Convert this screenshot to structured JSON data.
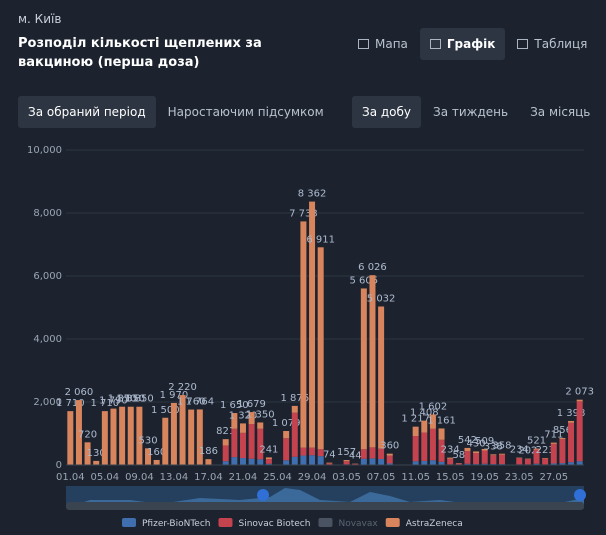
{
  "header": {
    "city": "м. Київ",
    "title": "Розподіл кількості щеплених за вакциною (перша доза)",
    "tabs": [
      "Мапа",
      "Графік",
      "Таблиця"
    ],
    "active_tab": 1
  },
  "modes": {
    "left": [
      "За обраний період",
      "Наростаючим підсумком"
    ],
    "right": [
      "За добу",
      "За тиждень",
      "За місяць"
    ],
    "left_active": 0,
    "right_active": 0
  },
  "chart_data": {
    "type": "stacked_bar",
    "categories": [
      "01.04",
      null,
      null,
      null,
      "05.04",
      null,
      null,
      null,
      "09.04",
      null,
      null,
      null,
      "13.04",
      null,
      null,
      null,
      "17.04",
      null,
      null,
      null,
      "21.04",
      null,
      null,
      null,
      "25.04",
      null,
      null,
      null,
      "29.04",
      null,
      null,
      null,
      "03.05",
      null,
      null,
      null,
      "07.05",
      null,
      null,
      null,
      "11.05",
      null,
      null,
      null,
      "15.05",
      null,
      null,
      null,
      "19.05",
      null,
      null,
      null,
      "23.05",
      null,
      null,
      null,
      "27.05",
      null,
      null,
      null
    ],
    "series": [
      {
        "name": "Pfizer-BioNTech",
        "color": "#3f6fae",
        "values": [
          0,
          0,
          0,
          0,
          0,
          0,
          0,
          0,
          0,
          0,
          0,
          0,
          0,
          0,
          0,
          0,
          0,
          0,
          120,
          250,
          220,
          200,
          180,
          40,
          0,
          150,
          260,
          300,
          310,
          280,
          10,
          0,
          20,
          5,
          200,
          210,
          190,
          50,
          0,
          0,
          120,
          130,
          150,
          100,
          20,
          8,
          40,
          30,
          40,
          30,
          30,
          0,
          20,
          20,
          40,
          20,
          50,
          60,
          90,
          120
        ]
      },
      {
        "name": "Sinovac Biotech",
        "color": "#c5434f",
        "values": [
          0,
          0,
          0,
          0,
          0,
          0,
          0,
          0,
          0,
          0,
          0,
          0,
          0,
          0,
          0,
          0,
          0,
          0,
          501,
          900,
          800,
          1100,
          970,
          150,
          0,
          700,
          1400,
          250,
          240,
          220,
          44,
          0,
          100,
          30,
          300,
          350,
          330,
          250,
          0,
          0,
          800,
          900,
          1000,
          700,
          180,
          40,
          400,
          350,
          420,
          280,
          300,
          0,
          200,
          170,
          450,
          190,
          620,
          760,
          1250,
          1900
        ]
      },
      {
        "name": "Novavax",
        "color": "#4a5361",
        "values": [
          0,
          0,
          0,
          0,
          0,
          0,
          0,
          0,
          0,
          0,
          0,
          0,
          0,
          0,
          0,
          0,
          0,
          0,
          0,
          0,
          0,
          0,
          0,
          0,
          0,
          0,
          0,
          0,
          0,
          0,
          0,
          0,
          0,
          0,
          0,
          0,
          0,
          0,
          0,
          0,
          0,
          0,
          0,
          0,
          0,
          0,
          0,
          0,
          0,
          0,
          0,
          0,
          0,
          0,
          0,
          0,
          0,
          0,
          0,
          0
        ]
      },
      {
        "name": "AstraZeneca",
        "color": "#d8845c",
        "values": [
          1710,
          2060,
          720,
          130,
          1710,
          1790,
          1850,
          1850,
          1850,
          530,
          160,
          1500,
          1970,
          2220,
          1760,
          1764,
          186,
          0,
          200,
          500,
          300,
          379,
          200,
          51,
          0,
          229,
          216,
          7183,
          7812,
          6411,
          20,
          0,
          37,
          9,
          5105,
          5466,
          4512,
          60,
          0,
          0,
          297,
          378,
          452,
          361,
          34,
          10,
          102,
          50,
          49,
          28,
          28,
          0,
          14,
          12,
          31,
          13,
          41,
          36,
          58,
          53
        ]
      }
    ],
    "total_labels": [
      "1 710",
      "2 060",
      "720",
      "130",
      "1 710",
      "1 790",
      "1 850",
      "1 850",
      "1 850",
      "530",
      "160",
      "1 500",
      "1 970",
      "2 220",
      "1 760",
      "1 764",
      "186",
      null,
      "821",
      "1 650",
      "1 320",
      "1 679",
      "1 350",
      "241",
      null,
      "1 079",
      "1 876",
      "7 733",
      "8 362",
      "6 911",
      "74",
      null,
      "157",
      "44",
      "5 605",
      "6 026",
      "5 032",
      "360",
      null,
      null,
      "1 217",
      "1 408",
      "1 602",
      "1 161",
      "234",
      "58",
      "542",
      "430",
      "509",
      "338",
      "358",
      null,
      "234",
      "202",
      "521",
      "223",
      "711",
      "856",
      "1 398",
      "2 073"
    ],
    "ylim": [
      0,
      10000
    ],
    "yticks": [
      0,
      {
        "value": 2000,
        "label": "2,000"
      },
      {
        "value": 4000,
        "label": "4,000"
      },
      {
        "value": 6000,
        "label": "6,000"
      },
      {
        "value": 8000,
        "label": "8,000"
      },
      {
        "value": 10000,
        "label": "10,000"
      }
    ],
    "grid": true,
    "legend": "bottom"
  }
}
